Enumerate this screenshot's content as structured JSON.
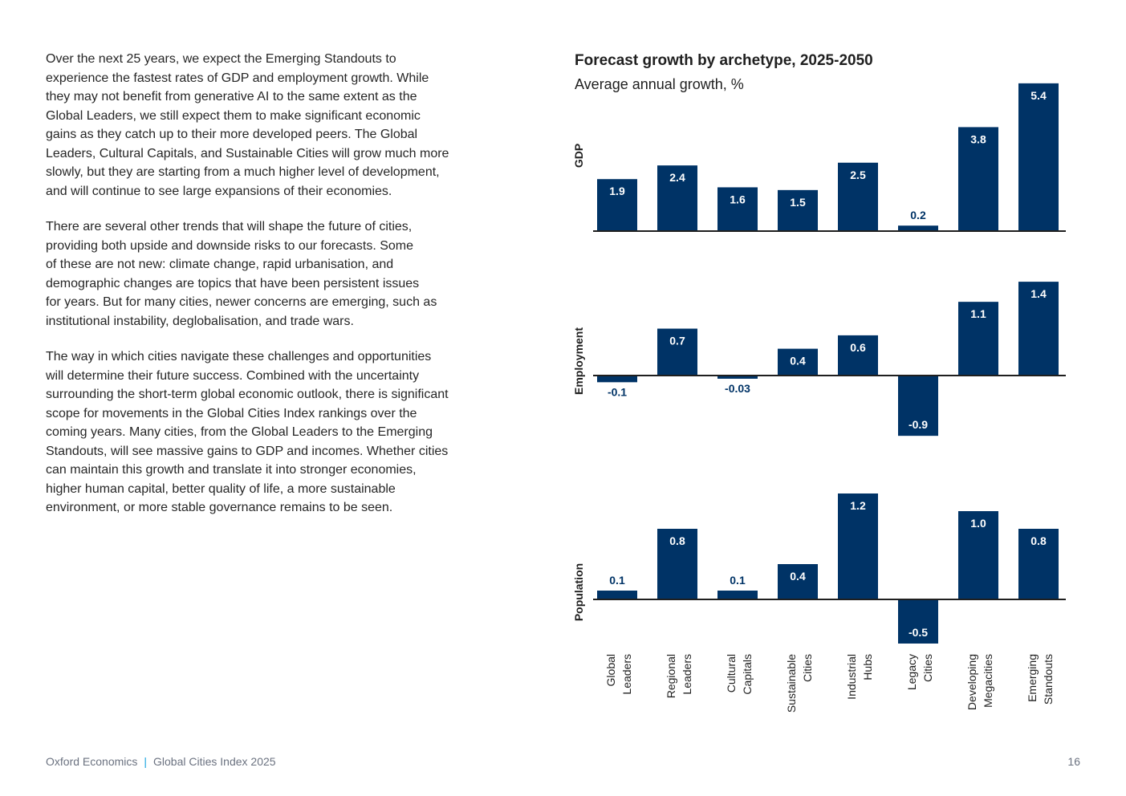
{
  "body_paragraphs": [
    "Over the next 25 years, we expect the Emerging Standouts to\nexperience the fastest rates of GDP and employment growth. While\nthey may not benefit from generative AI to the same extent as the\nGlobal Leaders, we still expect them to make significant economic\ngains as they catch up to their more developed peers. The Global\nLeaders, Cultural Capitals, and Sustainable Cities will grow much more\nslowly, but they are starting from a much higher level of development,\nand will continue to see large expansions of their economies.",
    "There are several other trends that will shape the future of cities,\nproviding both upside and downside risks to our forecasts. Some\nof these are not new: climate change, rapid urbanisation, and\ndemographic changes are topics that have been persistent issues\nfor years. But for many cities, newer concerns are emerging, such as\ninstitutional instability, deglobalisation, and trade wars.",
    "The way in which cities navigate these challenges and opportunities\nwill determine their future success. Combined with the uncertainty\nsurrounding the short-term global economic outlook, there is significant\nscope for movements in the Global Cities Index rankings over the\ncoming years. Many cities, from the Global Leaders to the Emerging\nStandouts, will see massive gains to GDP and incomes. Whether cities\ncan maintain this growth and translate it into stronger economies,\nhigher human capital, better quality of life, a more sustainable\nenvironment, or more stable governance remains to be seen."
  ],
  "footer": {
    "publisher": "Oxford Economics",
    "separator": "|",
    "report": "Global Cities Index 2025",
    "page_number": "16"
  },
  "colors": {
    "bar": "#003366",
    "axis": "#1f1f1f",
    "inside_label": "#ffffff",
    "outside_label": "#003366",
    "footer_separator": "#1aa6e0"
  },
  "chart_data": {
    "type": "bar",
    "title": "Forecast growth by archetype, 2025-2050",
    "subtitle": "Average annual growth, %",
    "categories": [
      [
        "Global",
        "Leaders"
      ],
      [
        "Regional",
        "Leaders"
      ],
      [
        "Cultural",
        "Capitals"
      ],
      [
        "Sustainable",
        "Cities"
      ],
      [
        "Industrial",
        "Hubs"
      ],
      [
        "Legacy",
        "Cities"
      ],
      [
        "Developing",
        "Megacities"
      ],
      [
        "Emerging",
        "Standouts"
      ]
    ],
    "panels": [
      {
        "label": "GDP",
        "values": [
          1.9,
          2.4,
          1.6,
          1.5,
          2.5,
          0.2,
          3.8,
          5.4
        ],
        "value_labels": [
          "1.9",
          "2.4",
          "1.6",
          "1.5",
          "2.5",
          "0.2",
          "3.8",
          "5.4"
        ]
      },
      {
        "label": "Employment",
        "values": [
          -0.1,
          0.7,
          -0.03,
          0.4,
          0.6,
          -0.9,
          1.1,
          1.4
        ],
        "value_labels": [
          "-0.1",
          "0.7",
          "-0.03",
          "0.4",
          "0.6",
          "-0.9",
          "1.1",
          "1.4"
        ]
      },
      {
        "label": "Population",
        "values": [
          0.1,
          0.8,
          0.1,
          0.4,
          1.2,
          -0.5,
          1.0,
          0.8
        ],
        "value_labels": [
          "0.1",
          "0.8",
          "0.1",
          "0.4",
          "1.2",
          "-0.5",
          "1.0",
          "0.8"
        ]
      }
    ]
  }
}
